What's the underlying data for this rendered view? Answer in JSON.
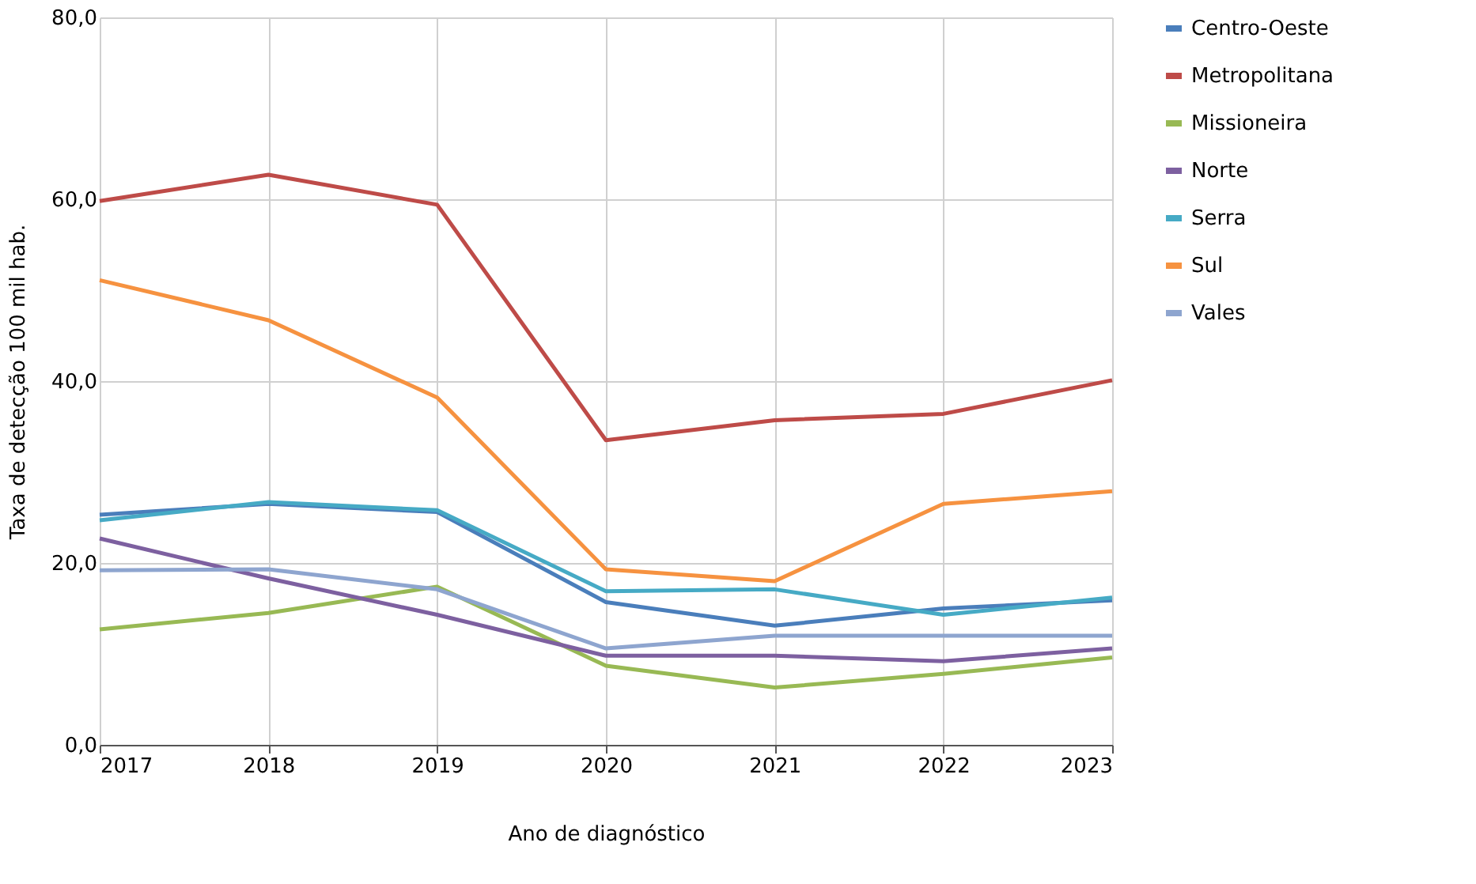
{
  "chart_data": {
    "type": "line",
    "xlabel": "Ano de diagnóstico",
    "ylabel": "Taxa de detecção 100 mil hab.",
    "x": [
      2017,
      2018,
      2019,
      2020,
      2021,
      2022,
      2023
    ],
    "xlim": [
      2017,
      2023
    ],
    "xticks": [
      2017,
      2018,
      2019,
      2020,
      2021,
      2022,
      2023
    ],
    "ylim": [
      0,
      80
    ],
    "yticks": [
      {
        "value": 0,
        "label": "0,0"
      },
      {
        "value": 20,
        "label": "20,0"
      },
      {
        "value": 40,
        "label": "40,0"
      },
      {
        "value": 60,
        "label": "60,0"
      },
      {
        "value": 80,
        "label": "80,0"
      }
    ],
    "grid": true,
    "legend": "right",
    "marker": "none",
    "line_style": "solid",
    "series": [
      {
        "name": "Centro-Oeste",
        "color": "#4a7ebb",
        "values": [
          25.3,
          26.5,
          25.6,
          15.7,
          13.1,
          15.0,
          15.9
        ]
      },
      {
        "name": "Metropolitana",
        "color": "#be4b48",
        "values": [
          59.8,
          62.7,
          59.4,
          33.5,
          35.7,
          36.4,
          40.1
        ]
      },
      {
        "name": "Missioneira",
        "color": "#98b954",
        "values": [
          12.7,
          14.5,
          17.4,
          8.7,
          6.3,
          7.8,
          9.6
        ]
      },
      {
        "name": "Norte",
        "color": "#7d60a0",
        "values": [
          22.7,
          18.3,
          14.3,
          9.8,
          9.8,
          9.2,
          10.6
        ]
      },
      {
        "name": "Serra",
        "color": "#46aac5",
        "values": [
          24.7,
          26.7,
          25.8,
          16.9,
          17.1,
          14.3,
          16.2
        ]
      },
      {
        "name": "Sul",
        "color": "#f69240",
        "values": [
          51.1,
          46.7,
          38.2,
          19.3,
          18.0,
          26.5,
          27.9
        ]
      },
      {
        "name": "Vales",
        "color": "#8ea5cf",
        "values": [
          19.2,
          19.3,
          17.1,
          10.6,
          12.0,
          12.0,
          12.0
        ]
      }
    ]
  }
}
